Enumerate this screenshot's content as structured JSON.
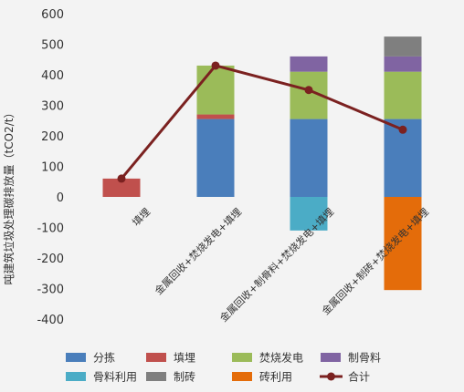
{
  "chart_data": {
    "type": "bar",
    "subtype": "stacked",
    "title": "",
    "xlabel": "",
    "ylabel": "吨建筑垃圾处理碳排放量（tCO2/t）",
    "ylim": [
      -400,
      600
    ],
    "yticks": [
      -400,
      -300,
      -200,
      -100,
      0,
      100,
      200,
      300,
      400,
      500,
      600
    ],
    "grid": false,
    "legend_position": "bottom",
    "categories": [
      "填埋",
      "金属回收+焚烧发电+填埋",
      "金属回收+制骨料+焚烧发电+填埋",
      "金属回收+制砖+焚烧发电+填埋"
    ],
    "series": [
      {
        "name": "分拣",
        "color": "#4a7ebb",
        "values": [
          0,
          255,
          255,
          255
        ]
      },
      {
        "name": "填埋",
        "color": "#c0504d",
        "values": [
          60,
          15,
          0,
          0
        ]
      },
      {
        "name": "焚烧发电",
        "color": "#9bbb59",
        "values": [
          0,
          160,
          155,
          155
        ]
      },
      {
        "name": "制骨料",
        "color": "#8064a2",
        "values": [
          0,
          0,
          50,
          50
        ]
      },
      {
        "name": "骨料利用",
        "color": "#4bacc6",
        "values": [
          0,
          0,
          -110,
          0
        ]
      },
      {
        "name": "制砖",
        "color": "#7f7f7f",
        "values": [
          0,
          0,
          0,
          65
        ]
      },
      {
        "name": "砖利用",
        "color": "#e46c0a",
        "values": [
          0,
          0,
          0,
          -305
        ]
      }
    ],
    "total_line": {
      "name": "合计",
      "color": "#7b2120",
      "values": [
        60,
        430,
        350,
        220
      ]
    }
  }
}
